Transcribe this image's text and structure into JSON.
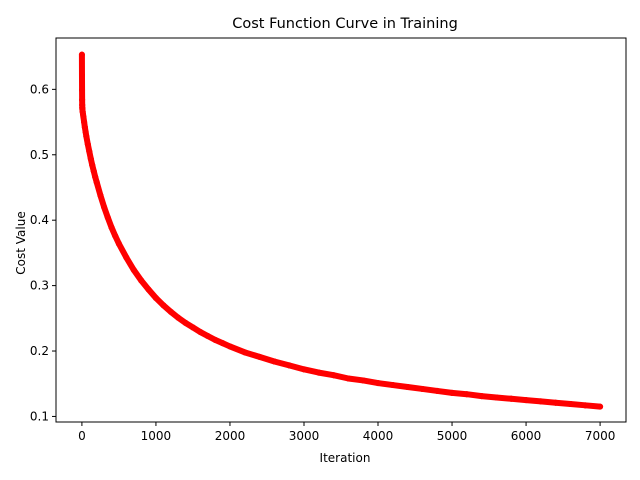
{
  "chart_data": {
    "type": "scatter",
    "title": "Cost Function Curve in Training",
    "xlabel": "Iteration",
    "ylabel": "Cost Value",
    "xlim": [
      -350,
      7350
    ],
    "ylim": [
      0.0915,
      0.6785
    ],
    "xticks": [
      0,
      1000,
      2000,
      3000,
      4000,
      5000,
      6000,
      7000
    ],
    "yticks": [
      0.1,
      0.2,
      0.3,
      0.4,
      0.5,
      0.6
    ],
    "grid": false,
    "marker_color": "#ff0000",
    "series": [
      {
        "x": [
          0,
          1,
          2,
          3,
          4,
          5,
          6,
          8,
          10,
          15,
          20,
          30,
          40,
          50,
          60,
          80,
          100,
          120,
          140,
          160,
          180,
          200,
          250,
          300,
          350,
          400,
          450,
          500,
          600,
          700,
          800,
          900,
          1000,
          1100,
          1200,
          1300,
          1400,
          1500,
          1600,
          1700,
          1800,
          1900,
          2000,
          2200,
          2400,
          2600,
          2800,
          3000,
          3200,
          3400,
          3600,
          3800,
          4000,
          4200,
          4400,
          4600,
          4800,
          5000,
          5200,
          5400,
          5600,
          5800,
          6000,
          6200,
          6400,
          6600,
          6800,
          7000
        ],
        "values": [
          0.653,
          0.622,
          0.599,
          0.584,
          0.576,
          0.572,
          0.57,
          0.568,
          0.566,
          0.562,
          0.558,
          0.55,
          0.542,
          0.535,
          0.528,
          0.516,
          0.505,
          0.494,
          0.484,
          0.475,
          0.466,
          0.458,
          0.438,
          0.42,
          0.404,
          0.389,
          0.376,
          0.364,
          0.343,
          0.324,
          0.308,
          0.294,
          0.281,
          0.27,
          0.26,
          0.251,
          0.243,
          0.236,
          0.229,
          0.223,
          0.217,
          0.212,
          0.207,
          0.198,
          0.191,
          0.184,
          0.178,
          0.172,
          0.167,
          0.163,
          0.158,
          0.155,
          0.151,
          0.148,
          0.145,
          0.142,
          0.139,
          0.136,
          0.134,
          0.131,
          0.129,
          0.127,
          0.125,
          0.123,
          0.121,
          0.119,
          0.117,
          0.115
        ]
      }
    ]
  }
}
